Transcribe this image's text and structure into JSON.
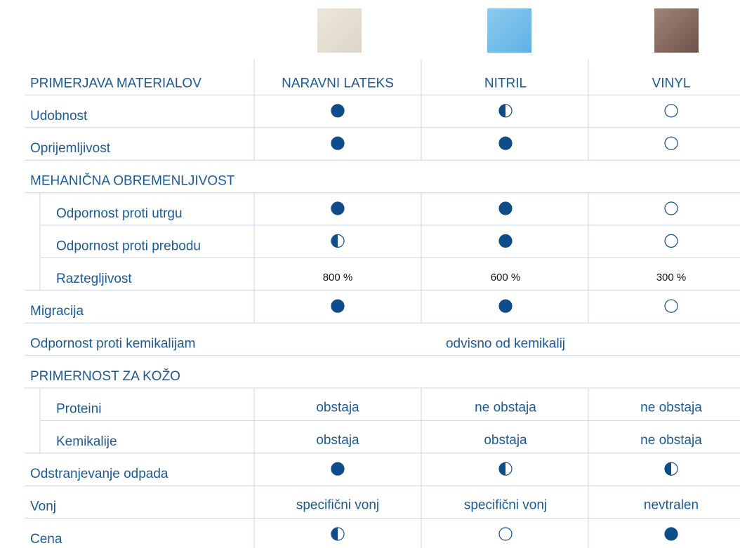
{
  "table": {
    "header": [
      "PRIMERJAVA MATERIALOV",
      "NARAVNI LATEKS",
      "NITRIL",
      "VINYL"
    ],
    "rows": [
      {
        "label": "Udobnost",
        "ratings": [
          1,
          0.5,
          0
        ]
      },
      {
        "label": "Oprijemljivost",
        "ratings": [
          1,
          1,
          0
        ]
      },
      {
        "label": "MEHANIČNA OBREMENLJIVOST",
        "items": [
          {
            "label": "Odpornost proti utrgu",
            "ratings": [
              1,
              1,
              0
            ]
          },
          {
            "label": "Odpornost proti prebodu",
            "ratings": [
              0.5,
              1,
              0
            ]
          },
          {
            "label": "Raztegljivost",
            "cells": [
              "800 %",
              "600 %",
              "300 %"
            ]
          }
        ]
      },
      {
        "label": "Migracija",
        "ratings": [
          1,
          1,
          0
        ]
      },
      {
        "label": "Odpornost proti kemikalijam",
        "note": "odvisno od kemikalij"
      },
      {
        "label": "PRIMERNOST ZA KOŽO",
        "items": [
          {
            "label": "Proteini",
            "cells": [
              "obstaja",
              "ne obstaja",
              "ne obstaja"
            ]
          },
          {
            "label": "Kemikalije",
            "cells": [
              "obstaja",
              "obstaja",
              "ne obstaja"
            ]
          }
        ]
      },
      {
        "label": "Odstranjevanje odpada",
        "ratings": [
          1,
          0.5,
          0.5
        ]
      },
      {
        "label": "Vonj",
        "cells": [
          "specifični vonj",
          "specifični vonj",
          "nevtralen"
        ]
      },
      {
        "label": "Cena",
        "ratings": [
          0.5,
          0,
          1
        ]
      }
    ]
  }
}
